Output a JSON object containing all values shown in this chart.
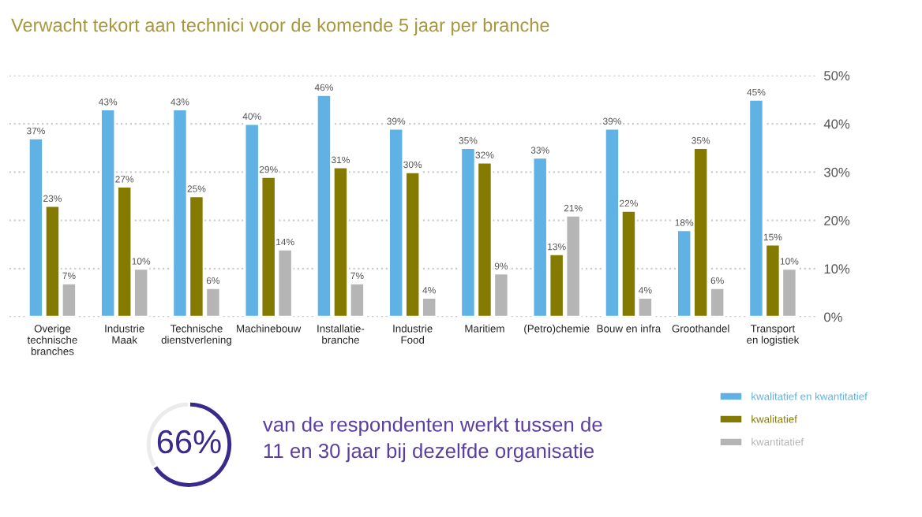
{
  "chart_data": [
    {
      "type": "bar",
      "title": "Verwacht tekort aan technici voor de komende 5 jaar per branche",
      "categories": [
        "Overige\ntechnische\nbranches",
        "Industrie\nMaak",
        "Technische\ndienstverlening",
        "Machinebouw",
        "Installatie-\nbranche",
        "Industrie\nFood",
        "Maritiem",
        "(Petro)chemie",
        "Bouw en infra",
        "Groothandel",
        "Transport\nen logistiek"
      ],
      "series": [
        {
          "name": "kwalitatief en kwantitatief",
          "color": "#5fb2e3",
          "values": [
            37,
            43,
            43,
            40,
            46,
            39,
            35,
            33,
            39,
            18,
            45
          ],
          "value_labels": [
            "37%",
            "43%",
            "43%",
            "40%",
            "46%",
            "39%",
            "35%",
            "33%",
            "39%",
            "18%",
            "45%"
          ]
        },
        {
          "name": "kwalitatief",
          "color": "#857a00",
          "values": [
            23,
            27,
            25,
            29,
            31,
            30,
            32,
            13,
            22,
            35,
            15
          ],
          "value_labels": [
            "23%",
            "27%",
            "25%",
            "29%",
            "31%",
            "30%",
            "32%",
            "13%",
            "22%",
            "35%",
            "15%"
          ]
        },
        {
          "name": "kwantitatief",
          "color": "#b5b5b5",
          "values": [
            7,
            10,
            6,
            14,
            7,
            4,
            9,
            21,
            4,
            6,
            10
          ],
          "value_labels": [
            "7%",
            "10%",
            "6%",
            "14%",
            "7%",
            "4%",
            "9%",
            "21%",
            "4%",
            "6%",
            "10%"
          ]
        }
      ],
      "ylim": [
        0,
        50
      ],
      "yticks": [
        {
          "value": 0,
          "label": "0%"
        },
        {
          "value": 10,
          "label": "10%"
        },
        {
          "value": 20,
          "label": "20%"
        },
        {
          "value": 30,
          "label": "30%"
        },
        {
          "value": 40,
          "label": "40%"
        },
        {
          "value": 50,
          "label": "50%"
        }
      ],
      "grid": "y",
      "legend": "bottom right"
    },
    {
      "type": "donut",
      "categories": [
        null,
        null
      ],
      "values": [
        66,
        34
      ],
      "colors": [
        "#3a2a8c",
        "#ebebeb"
      ],
      "annotations": [
        "66%",
        "van de respondenten werkt tussen de\n11 en 30 jaar bij dezelfde organisatie"
      ]
    }
  ]
}
